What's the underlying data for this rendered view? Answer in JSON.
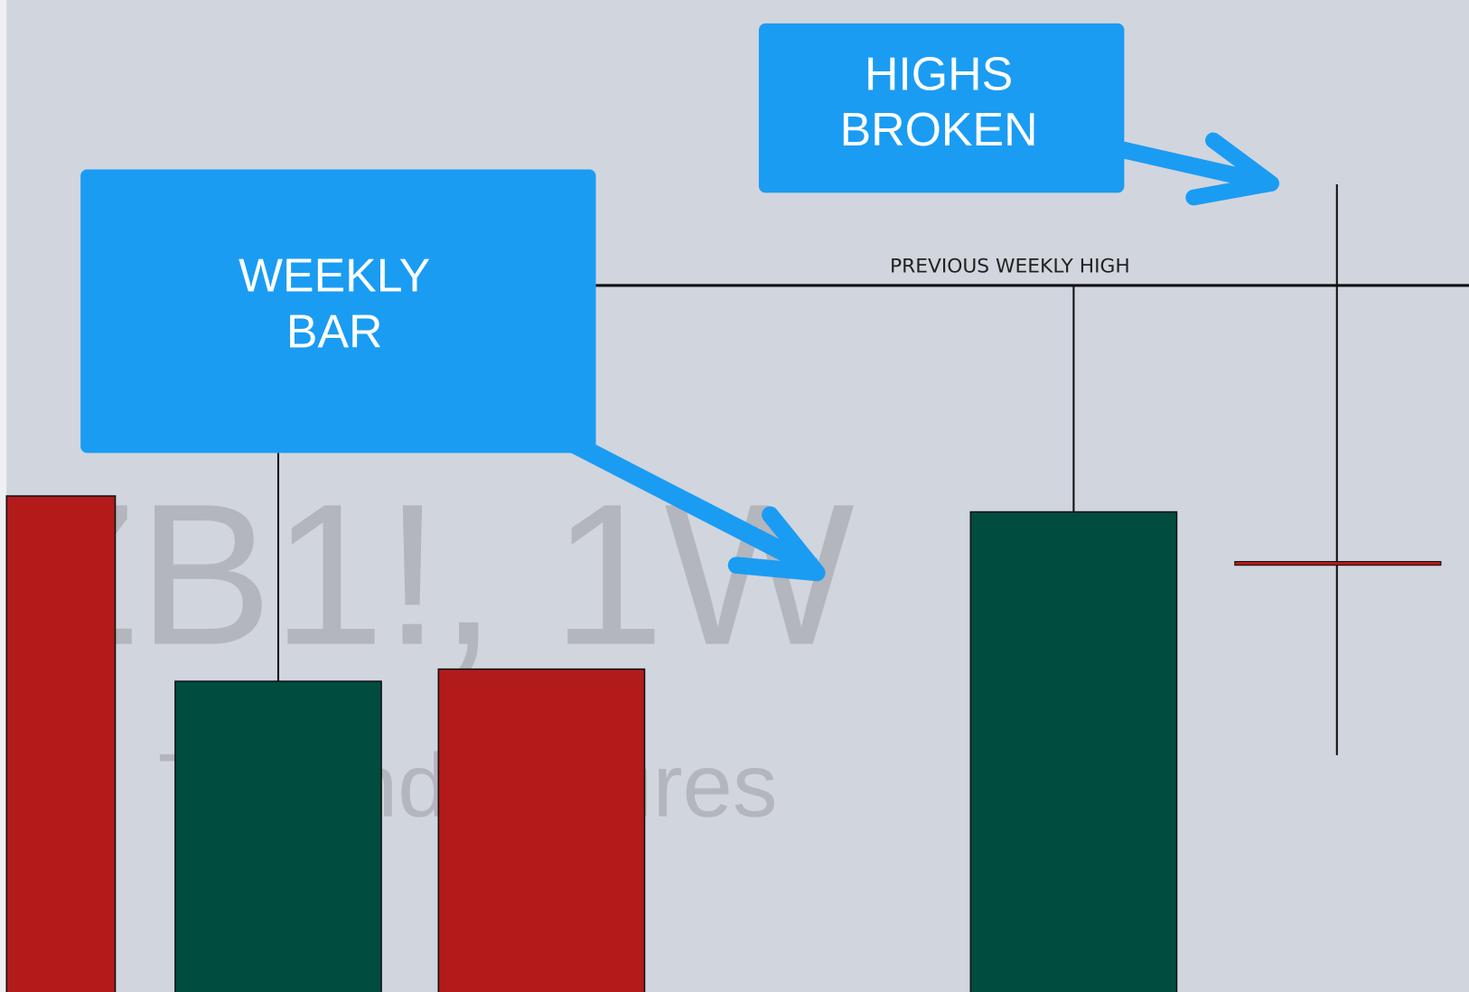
{
  "watermark": {
    "symbol": "ZB1!, 1W",
    "description": "T-Bond Futures"
  },
  "level_label": "PREVIOUS WEEKLY HIGH",
  "callouts": [
    {
      "lines": [
        "WEEKLY",
        "BAR"
      ]
    },
    {
      "lines": [
        "HIGHS",
        "BROKEN"
      ]
    }
  ]
}
